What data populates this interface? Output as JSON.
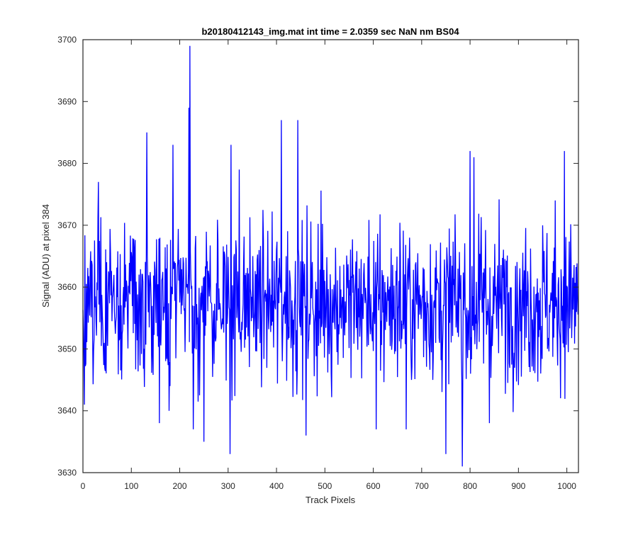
{
  "chart_data": {
    "type": "line",
    "title": "b20180412143_img.mat int time = 2.0359 sec  NaN nm BS04",
    "xlabel": "Track Pixels",
    "ylabel": "Signal (ADU) at pixel 384",
    "xlim": [
      0,
      1024
    ],
    "ylim": [
      3630,
      3700
    ],
    "xticks": [
      0,
      100,
      200,
      300,
      400,
      500,
      600,
      700,
      800,
      900,
      1000
    ],
    "yticks": [
      3630,
      3640,
      3650,
      3660,
      3670,
      3680,
      3690,
      3700
    ],
    "grid": false,
    "legend": "none",
    "line_color": "#0000ff",
    "series": [
      {
        "n_points": 1024,
        "mean": 3657.5,
        "std": 6.5,
        "min": 3631,
        "max": 3699,
        "notable_points": [
          {
            "x": 3,
            "y": 3641
          },
          {
            "x": 32,
            "y": 3677
          },
          {
            "x": 132,
            "y": 3685
          },
          {
            "x": 158,
            "y": 3638
          },
          {
            "x": 178,
            "y": 3640
          },
          {
            "x": 186,
            "y": 3683
          },
          {
            "x": 219,
            "y": 3689
          },
          {
            "x": 221,
            "y": 3699
          },
          {
            "x": 228,
            "y": 3637
          },
          {
            "x": 250,
            "y": 3635
          },
          {
            "x": 304,
            "y": 3633
          },
          {
            "x": 306,
            "y": 3683
          },
          {
            "x": 323,
            "y": 3679
          },
          {
            "x": 410,
            "y": 3687
          },
          {
            "x": 444,
            "y": 3687
          },
          {
            "x": 461,
            "y": 3636
          },
          {
            "x": 606,
            "y": 3637
          },
          {
            "x": 668,
            "y": 3637
          },
          {
            "x": 750,
            "y": 3633
          },
          {
            "x": 784,
            "y": 3631
          },
          {
            "x": 800,
            "y": 3682
          },
          {
            "x": 801,
            "y": 3646
          },
          {
            "x": 808,
            "y": 3681
          },
          {
            "x": 840,
            "y": 3638
          },
          {
            "x": 995,
            "y": 3682
          }
        ]
      }
    ]
  }
}
